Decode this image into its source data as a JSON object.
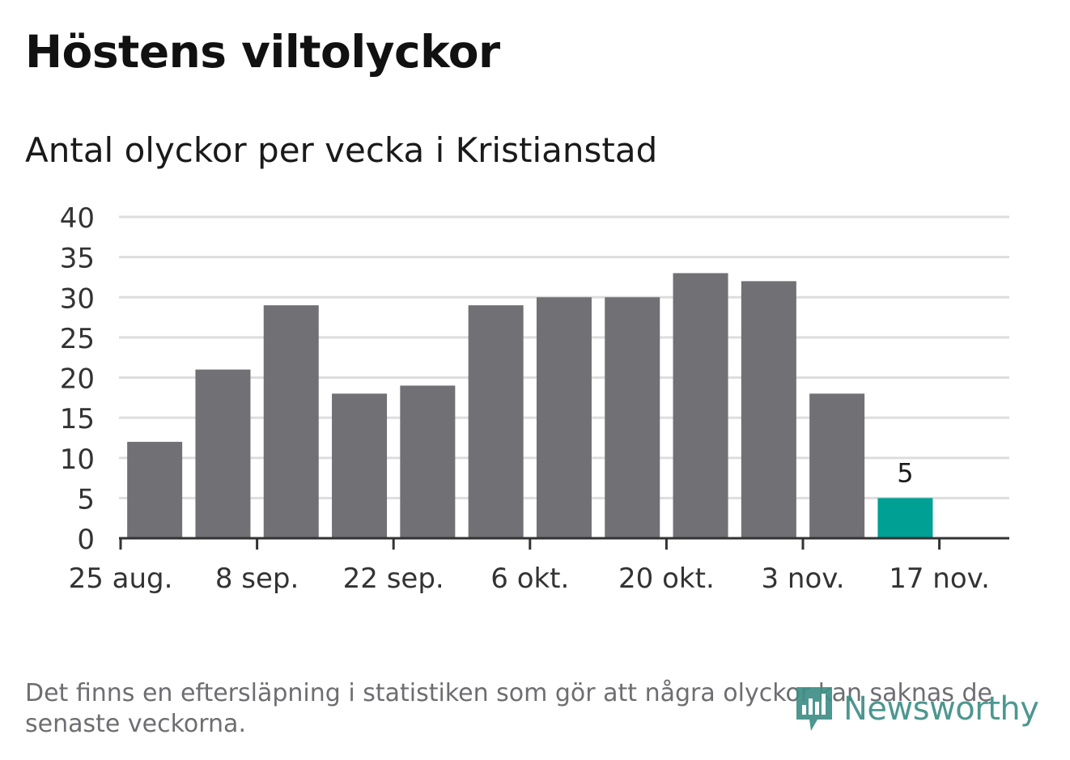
{
  "colors": {
    "bar": "#707075",
    "highlight": "#00a094",
    "grid": "#dddddd",
    "axis": "#333333",
    "text": "#333333",
    "logo": "#3e8f87"
  },
  "footer": {
    "note": "Det finns en eftersläpning i statistiken som gör att några olyckor kan saknas de senaste veckorna.",
    "logo_text": "Newsworthy",
    "logo_icon": "bar-chart-speech-bubble-icon"
  },
  "chart_data": {
    "type": "bar",
    "title": "Höstens viltolyckor",
    "subtitle": "Antal olyckor per vecka i Kristianstad",
    "xlabel": "",
    "ylabel": "",
    "ylim": [
      0,
      40
    ],
    "yticks": [
      0,
      5,
      10,
      15,
      20,
      25,
      30,
      35,
      40
    ],
    "xtick_labels": [
      "25 aug.",
      "8 sep.",
      "22 sep.",
      "6 okt.",
      "20 okt.",
      "3 nov.",
      "17 nov."
    ],
    "values": [
      12,
      21,
      29,
      18,
      19,
      29,
      30,
      30,
      33,
      32,
      18,
      5
    ],
    "highlight_index": 11,
    "data_labels": [
      {
        "index": 11,
        "text": "5"
      }
    ],
    "grid": true,
    "legend": "none"
  }
}
